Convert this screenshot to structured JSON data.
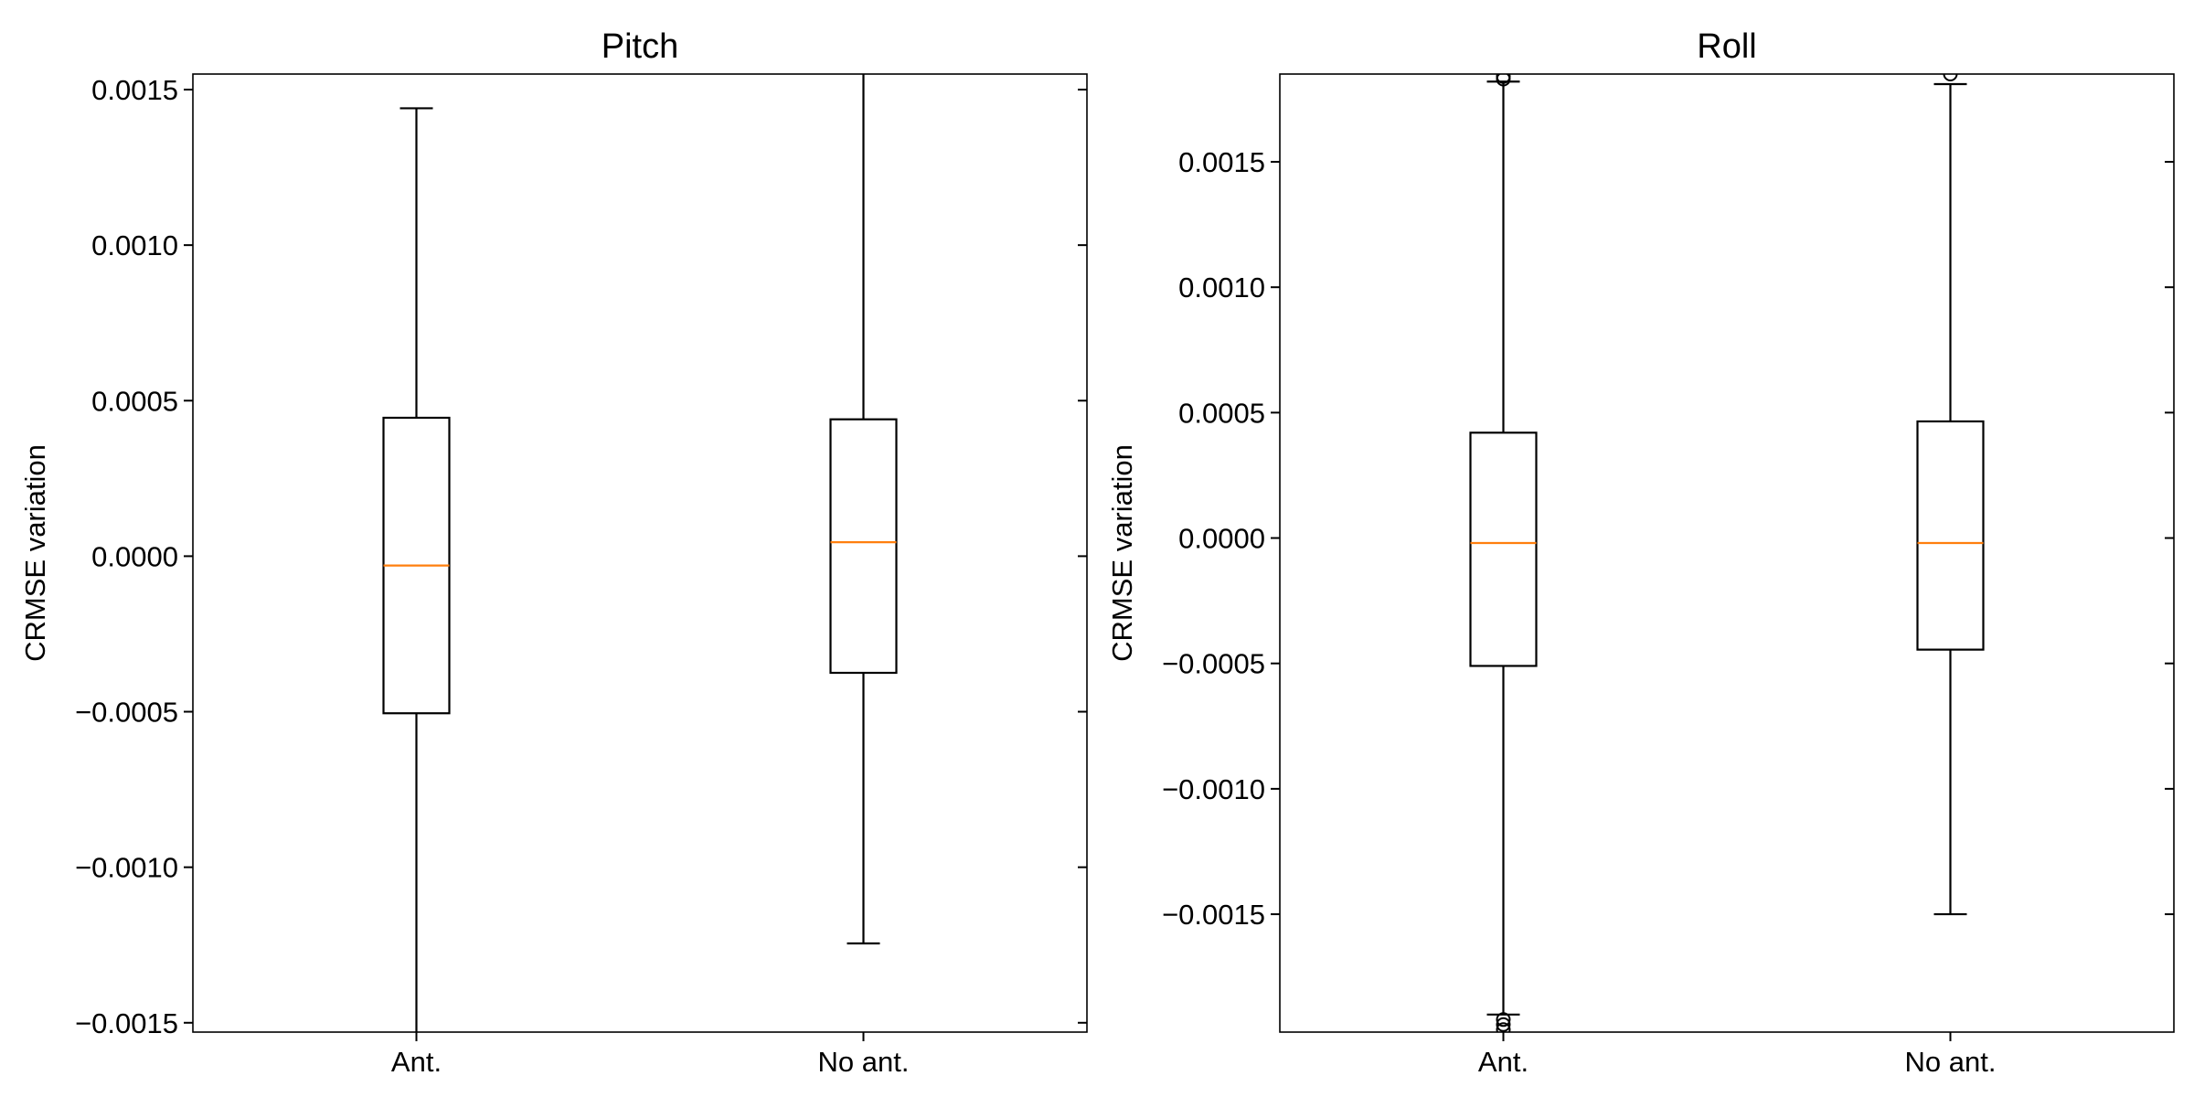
{
  "chart_data": [
    {
      "type": "box",
      "title": "Pitch",
      "ylabel": "CRMSE variation",
      "categories": [
        "Ant.",
        "No ant."
      ],
      "ylim": [
        -0.00153,
        0.00155
      ],
      "yticks": [
        -0.0015,
        -0.001,
        -0.0005,
        0.0,
        0.0005,
        0.001,
        0.0015
      ],
      "ytick_labels": [
        "−0.0015",
        "−0.0010",
        "−0.0005",
        "0.0000",
        "0.0005",
        "0.0010",
        "0.0015"
      ],
      "boxes": [
        {
          "category": "Ant.",
          "whisker_low": -0.00154,
          "q1": -0.000505,
          "median": -3e-05,
          "q3": 0.000445,
          "whisker_high": 0.00144,
          "outliers": []
        },
        {
          "category": "No ant.",
          "whisker_low": -0.001245,
          "q1": -0.000375,
          "median": 4.5e-05,
          "q3": 0.00044,
          "whisker_high": 0.00156,
          "outliers": []
        }
      ],
      "median_color": "#ff7f0e"
    },
    {
      "type": "box",
      "title": "Roll",
      "ylabel": "CRMSE variation",
      "categories": [
        "Ant.",
        "No ant."
      ],
      "ylim": [
        -0.00197,
        0.00185
      ],
      "yticks": [
        -0.0015,
        -0.001,
        -0.0005,
        0.0,
        0.0005,
        0.001,
        0.0015
      ],
      "ytick_labels": [
        "−0.0015",
        "−0.0010",
        "−0.0005",
        "0.0000",
        "0.0005",
        "0.0010",
        "0.0015"
      ],
      "boxes": [
        {
          "category": "Ant.",
          "whisker_low": -0.0019,
          "q1": -0.00051,
          "median": -2e-05,
          "q3": 0.00042,
          "whisker_high": 0.00182,
          "outliers": [
            0.00183,
            0.00184,
            -0.00192,
            -0.00194,
            -0.00196
          ]
        },
        {
          "category": "No ant.",
          "whisker_low": -0.0015,
          "q1": -0.000445,
          "median": -2e-05,
          "q3": 0.000465,
          "whisker_high": 0.00181,
          "outliers": [
            0.00185
          ]
        }
      ],
      "median_color": "#ff7f0e"
    }
  ]
}
